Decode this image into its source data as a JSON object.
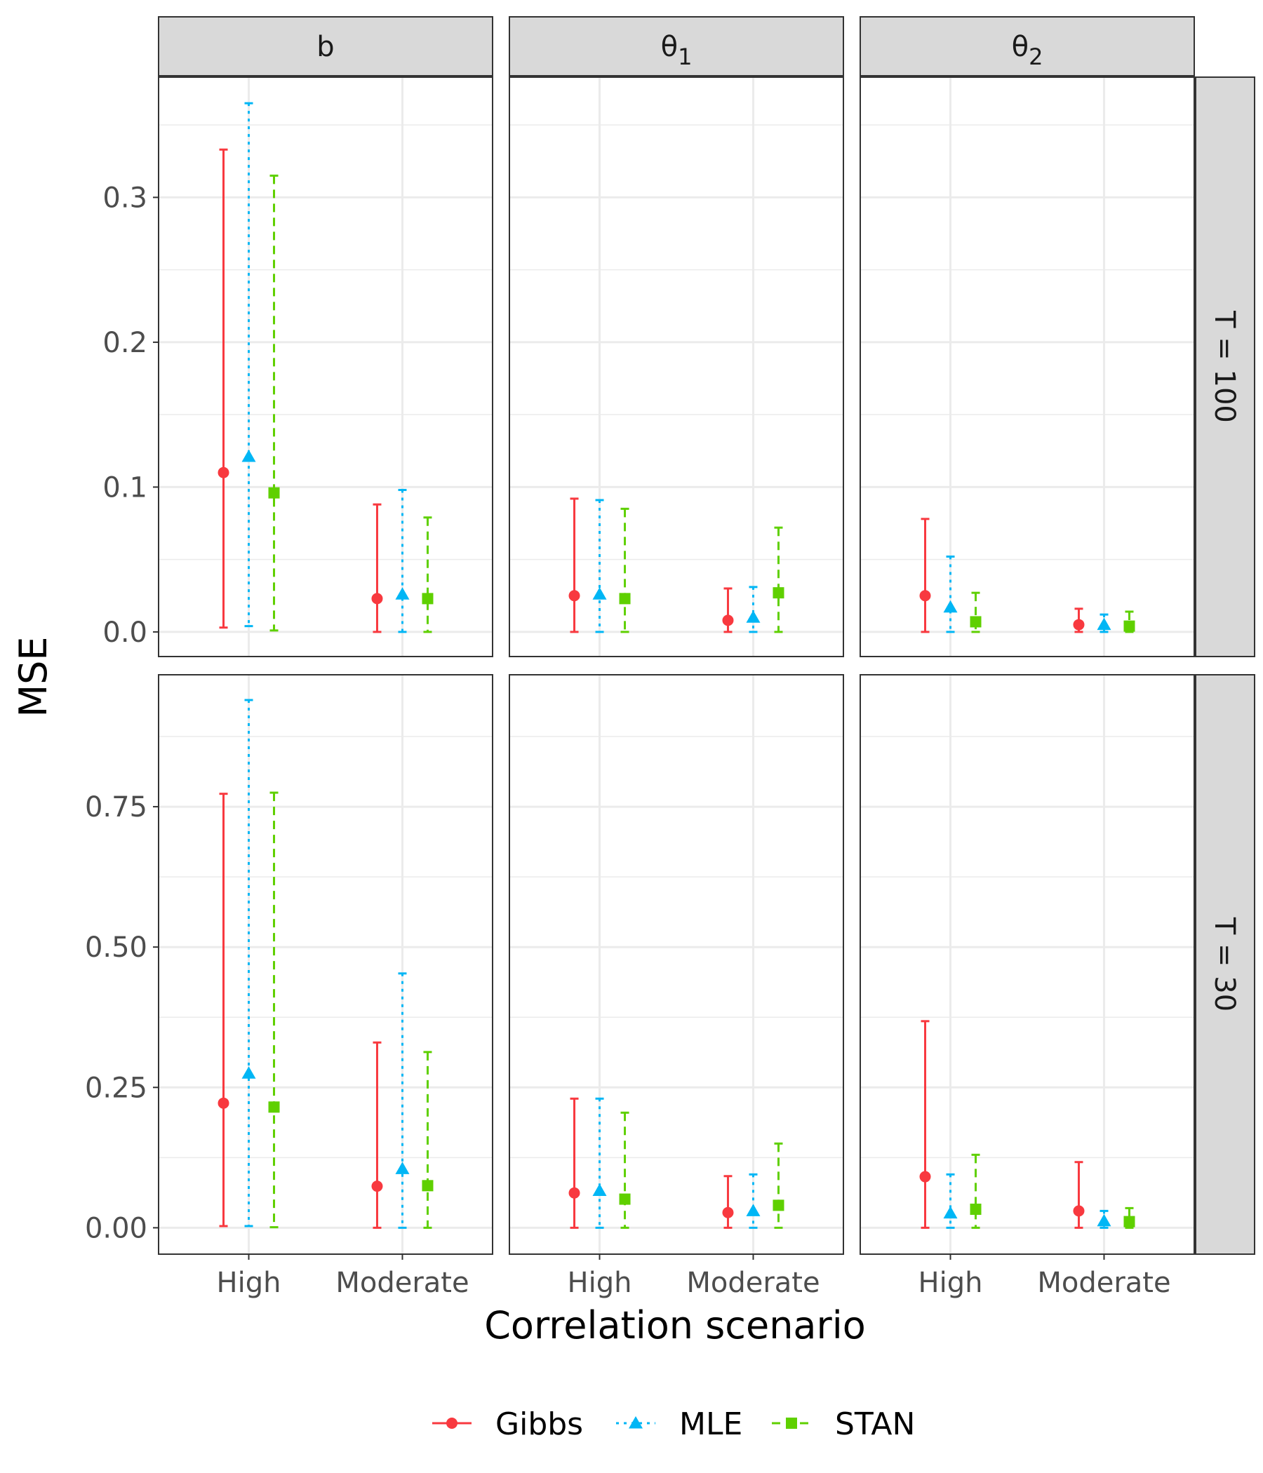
{
  "chart_data": {
    "type": "pointrange",
    "xlabel": "Correlation scenario",
    "ylabel": "MSE",
    "x_categories": [
      "High",
      "Moderate"
    ],
    "columns": [
      {
        "label": "b",
        "base": "b",
        "sub": ""
      },
      {
        "label": "θ1",
        "base": "θ",
        "sub": "1"
      },
      {
        "label": "θ2",
        "base": "θ",
        "sub": "2"
      }
    ],
    "rows": [
      {
        "label": "T = 100",
        "ylim": [
          -0.017,
          0.383
        ],
        "ticks": [
          0.0,
          0.1,
          0.2,
          0.3
        ],
        "tick_labels": [
          "0.0",
          "0.1",
          "0.2",
          "0.3"
        ]
      },
      {
        "label": "T = 30",
        "ylim": [
          -0.047,
          0.985
        ],
        "ticks": [
          0.0,
          0.25,
          0.5,
          0.75
        ],
        "tick_labels": [
          "0.00",
          "0.25",
          "0.50",
          "0.75"
        ]
      }
    ],
    "series": [
      {
        "name": "Gibbs",
        "color": "#F8393F",
        "shape": "circle",
        "linetype": "solid"
      },
      {
        "name": "MLE",
        "color": "#00B6F5",
        "shape": "triangle",
        "linetype": "dotted"
      },
      {
        "name": "STAN",
        "color": "#5FD000",
        "shape": "square",
        "linetype": "dashed"
      }
    ],
    "panels": [
      {
        "row": 0,
        "col": 0,
        "data": {
          "Gibbs": [
            {
              "x": "High",
              "y": 0.11,
              "ymin": 0.003,
              "ymax": 0.333
            },
            {
              "x": "Moderate",
              "y": 0.023,
              "ymin": 0.0,
              "ymax": 0.088
            }
          ],
          "MLE": [
            {
              "x": "High",
              "y": 0.121,
              "ymin": 0.004,
              "ymax": 0.365
            },
            {
              "x": "Moderate",
              "y": 0.026,
              "ymin": 0.0,
              "ymax": 0.098
            }
          ],
          "STAN": [
            {
              "x": "High",
              "y": 0.096,
              "ymin": 0.001,
              "ymax": 0.315
            },
            {
              "x": "Moderate",
              "y": 0.023,
              "ymin": 0.0,
              "ymax": 0.079
            }
          ]
        }
      },
      {
        "row": 0,
        "col": 1,
        "data": {
          "Gibbs": [
            {
              "x": "High",
              "y": 0.025,
              "ymin": 0.0,
              "ymax": 0.092
            },
            {
              "x": "Moderate",
              "y": 0.008,
              "ymin": 0.0,
              "ymax": 0.03
            }
          ],
          "MLE": [
            {
              "x": "High",
              "y": 0.026,
              "ymin": 0.0,
              "ymax": 0.091
            },
            {
              "x": "Moderate",
              "y": 0.01,
              "ymin": 0.0,
              "ymax": 0.031
            }
          ],
          "STAN": [
            {
              "x": "High",
              "y": 0.023,
              "ymin": 0.0,
              "ymax": 0.085
            },
            {
              "x": "Moderate",
              "y": 0.027,
              "ymin": 0.0,
              "ymax": 0.072
            }
          ]
        }
      },
      {
        "row": 0,
        "col": 2,
        "data": {
          "Gibbs": [
            {
              "x": "High",
              "y": 0.025,
              "ymin": 0.0,
              "ymax": 0.078
            },
            {
              "x": "Moderate",
              "y": 0.005,
              "ymin": 0.0,
              "ymax": 0.016
            }
          ],
          "MLE": [
            {
              "x": "High",
              "y": 0.017,
              "ymin": 0.0,
              "ymax": 0.052
            },
            {
              "x": "Moderate",
              "y": 0.005,
              "ymin": 0.0,
              "ymax": 0.012
            }
          ],
          "STAN": [
            {
              "x": "High",
              "y": 0.007,
              "ymin": 0.0,
              "ymax": 0.027
            },
            {
              "x": "Moderate",
              "y": 0.004,
              "ymin": 0.0,
              "ymax": 0.014
            }
          ]
        }
      },
      {
        "row": 1,
        "col": 0,
        "data": {
          "Gibbs": [
            {
              "x": "High",
              "y": 0.222,
              "ymin": 0.003,
              "ymax": 0.773
            },
            {
              "x": "Moderate",
              "y": 0.074,
              "ymin": 0.0,
              "ymax": 0.33
            }
          ],
          "MLE": [
            {
              "x": "High",
              "y": 0.275,
              "ymin": 0.003,
              "ymax": 0.94
            },
            {
              "x": "Moderate",
              "y": 0.105,
              "ymin": 0.0,
              "ymax": 0.453
            }
          ],
          "STAN": [
            {
              "x": "High",
              "y": 0.215,
              "ymin": 0.001,
              "ymax": 0.775
            },
            {
              "x": "Moderate",
              "y": 0.075,
              "ymin": 0.0,
              "ymax": 0.313
            }
          ]
        }
      },
      {
        "row": 1,
        "col": 1,
        "data": {
          "Gibbs": [
            {
              "x": "High",
              "y": 0.062,
              "ymin": 0.0,
              "ymax": 0.23
            },
            {
              "x": "Moderate",
              "y": 0.027,
              "ymin": 0.0,
              "ymax": 0.092
            }
          ],
          "MLE": [
            {
              "x": "High",
              "y": 0.066,
              "ymin": 0.0,
              "ymax": 0.23
            },
            {
              "x": "Moderate",
              "y": 0.03,
              "ymin": 0.0,
              "ymax": 0.095
            }
          ],
          "STAN": [
            {
              "x": "High",
              "y": 0.051,
              "ymin": 0.0,
              "ymax": 0.205
            },
            {
              "x": "Moderate",
              "y": 0.04,
              "ymin": 0.0,
              "ymax": 0.15
            }
          ]
        }
      },
      {
        "row": 1,
        "col": 2,
        "data": {
          "Gibbs": [
            {
              "x": "High",
              "y": 0.091,
              "ymin": 0.0,
              "ymax": 0.368
            },
            {
              "x": "Moderate",
              "y": 0.03,
              "ymin": 0.0,
              "ymax": 0.117
            }
          ],
          "MLE": [
            {
              "x": "High",
              "y": 0.026,
              "ymin": 0.0,
              "ymax": 0.095
            },
            {
              "x": "Moderate",
              "y": 0.012,
              "ymin": 0.0,
              "ymax": 0.03
            }
          ],
          "STAN": [
            {
              "x": "High",
              "y": 0.033,
              "ymin": 0.0,
              "ymax": 0.13
            },
            {
              "x": "Moderate",
              "y": 0.011,
              "ymin": 0.0,
              "ymax": 0.035
            }
          ]
        }
      }
    ],
    "legend": {
      "position": "bottom",
      "entries": [
        "Gibbs",
        "MLE",
        "STAN"
      ]
    },
    "grid": true,
    "theme": "bw"
  }
}
